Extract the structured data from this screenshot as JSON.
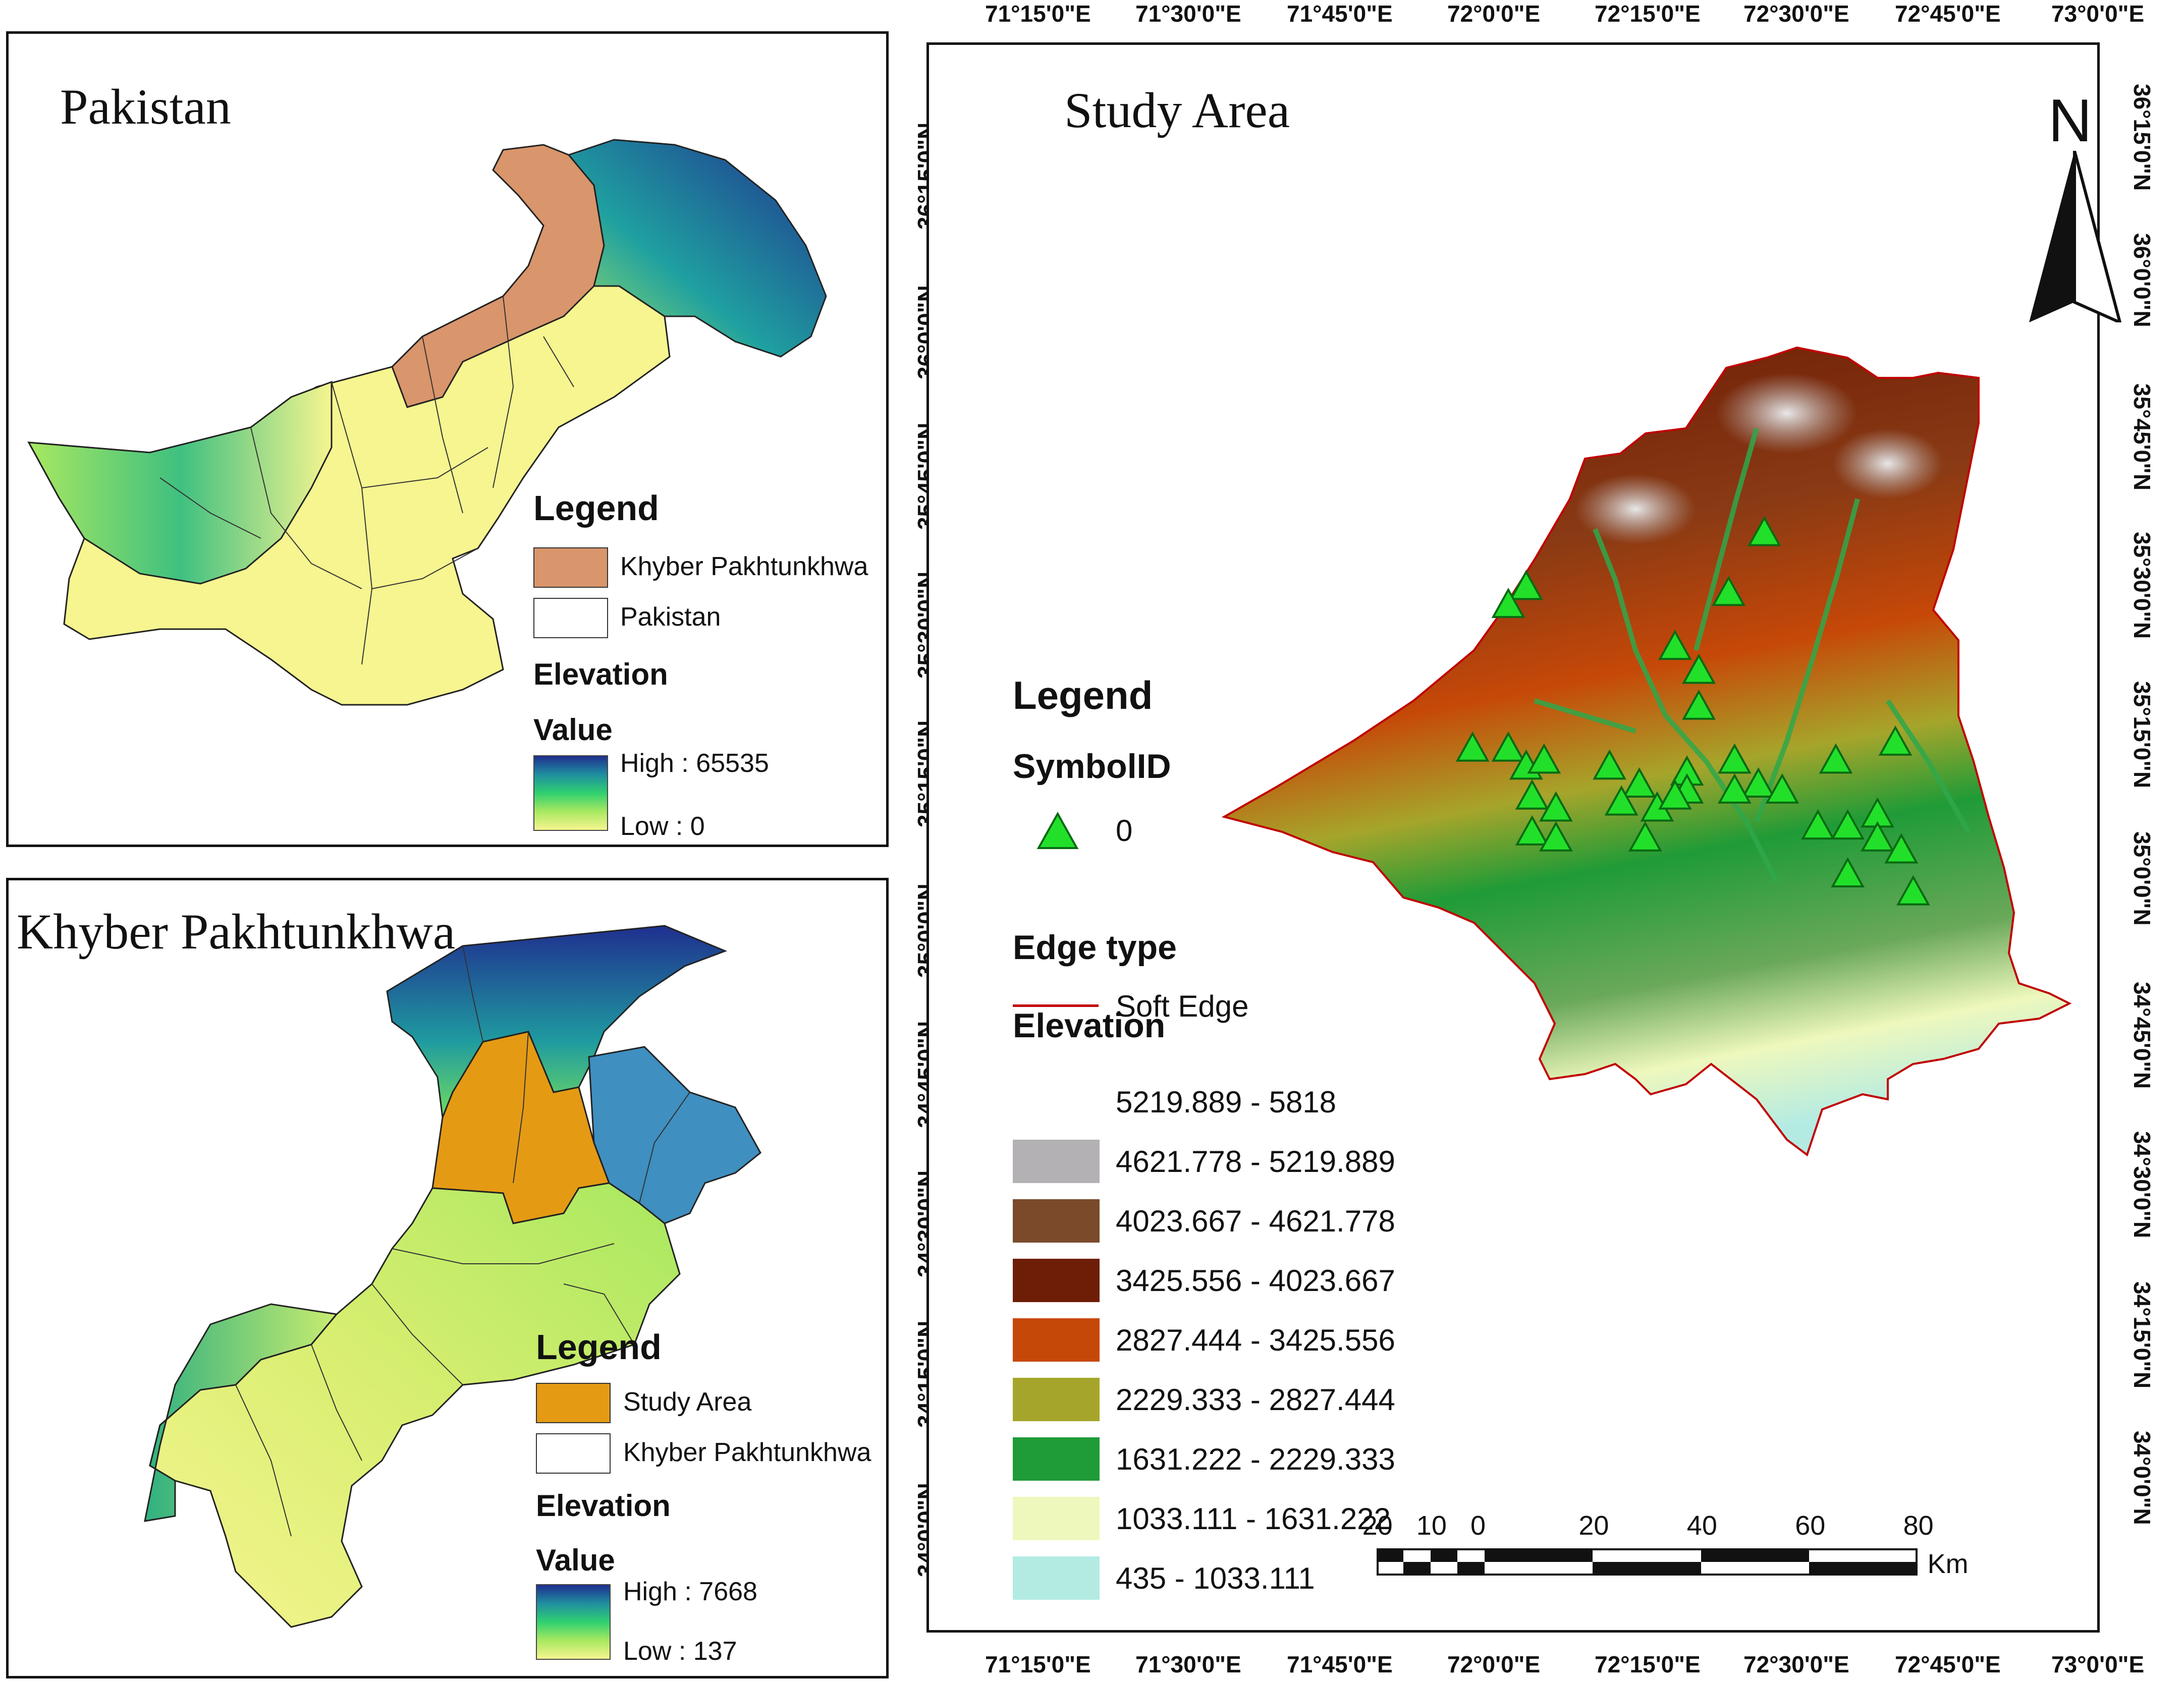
{
  "pakistan_panel": {
    "title": "Pakistan",
    "legend_title": "Legend",
    "legend_items": [
      {
        "label": "Khyber Pakhtunkhwa",
        "color": "#d9956b"
      },
      {
        "label": "Pakistan",
        "color": "#ffffff"
      }
    ],
    "elevation_title": "Elevation",
    "value_title": "Value",
    "high_label": "High : 65535",
    "low_label": "Low : 0",
    "ramp_colors": [
      "#1f2f8f",
      "#1f8fa0",
      "#2fd070",
      "#a8e860",
      "#f6f590"
    ]
  },
  "kp_panel": {
    "title": "Khyber Pakhtunkhwa",
    "legend_title": "Legend",
    "legend_items": [
      {
        "label": "Study Area",
        "color": "#e59a14"
      },
      {
        "label": "Khyber Pakhtunkhwa",
        "color": "#ffffff"
      }
    ],
    "elevation_title": "Elevation",
    "value_title": "Value",
    "high_label": "High : 7668",
    "low_label": "Low : 137"
  },
  "study_panel": {
    "title": "Study Area",
    "north_label": "N",
    "top_longitudes": [
      "71°15'0\"E",
      "71°30'0\"E",
      "71°45'0\"E",
      "72°0'0\"E",
      "72°15'0\"E",
      "72°30'0\"E",
      "72°45'0\"E",
      "73°0'0\"E"
    ],
    "bottom_longitudes": [
      "71°15'0\"E",
      "71°30'0\"E",
      "71°45'0\"E",
      "72°0'0\"E",
      "72°15'0\"E",
      "72°30'0\"E",
      "72°45'0\"E",
      "73°0'0\"E"
    ],
    "latitudes": [
      "36°15'0\"N",
      "36°0'0\"N",
      "35°45'0\"N",
      "35°30'0\"N",
      "35°15'0\"N",
      "35°0'0\"N",
      "34°45'0\"N",
      "34°30'0\"N",
      "34°15'0\"N",
      "34°0'0\"N"
    ],
    "legend_title": "Legend",
    "symbol_title": "SymbolID",
    "symbol_value": "0",
    "edge_title": "Edge type",
    "edge_label": "Soft Edge",
    "elevation_title": "Elevation",
    "elevation_classes": [
      {
        "label": "5219.889 - 5818",
        "color": "#ffffff"
      },
      {
        "label": "4621.778 - 5219.889",
        "color": "#b3b1b3"
      },
      {
        "label": "4023.667 - 4621.778",
        "color": "#7a4a2b"
      },
      {
        "label": "3425.556 - 4023.667",
        "color": "#6e1e06"
      },
      {
        "label": "2827.444 - 3425.556",
        "color": "#c64808"
      },
      {
        "label": "2229.333 - 2827.444",
        "color": "#a6a52b"
      },
      {
        "label": "1631.222 - 2229.333",
        "color": "#1f9b37"
      },
      {
        "label": "1033.111 - 1631.222",
        "color": "#eef8bd"
      },
      {
        "label": "435 - 1033.111",
        "color": "#b3ebe3"
      }
    ],
    "scale_labels": [
      "20",
      "10",
      "0",
      "20",
      "40",
      "60",
      "80"
    ],
    "scale_unit": "Km",
    "sample_points": [
      [
        72.53,
        35.62
      ],
      [
        72.47,
        35.52
      ],
      [
        72.13,
        35.53
      ],
      [
        72.1,
        35.5
      ],
      [
        72.38,
        35.43
      ],
      [
        72.42,
        35.39
      ],
      [
        72.42,
        35.33
      ],
      [
        72.04,
        35.26
      ],
      [
        72.1,
        35.26
      ],
      [
        72.13,
        35.23
      ],
      [
        72.16,
        35.24
      ],
      [
        72.27,
        35.23
      ],
      [
        72.32,
        35.2
      ],
      [
        72.4,
        35.22
      ],
      [
        72.4,
        35.19
      ],
      [
        72.48,
        35.24
      ],
      [
        72.52,
        35.2
      ],
      [
        72.56,
        35.19
      ],
      [
        72.65,
        35.24
      ],
      [
        72.75,
        35.27
      ],
      [
        72.14,
        35.18
      ],
      [
        72.18,
        35.16
      ],
      [
        72.29,
        35.17
      ],
      [
        72.35,
        35.16
      ],
      [
        72.38,
        35.18
      ],
      [
        72.48,
        35.19
      ],
      [
        72.62,
        35.13
      ],
      [
        72.67,
        35.13
      ],
      [
        72.72,
        35.15
      ],
      [
        72.72,
        35.11
      ],
      [
        72.76,
        35.09
      ],
      [
        72.14,
        35.12
      ],
      [
        72.18,
        35.11
      ],
      [
        72.33,
        35.11
      ],
      [
        72.67,
        35.05
      ],
      [
        72.78,
        35.02
      ]
    ]
  }
}
